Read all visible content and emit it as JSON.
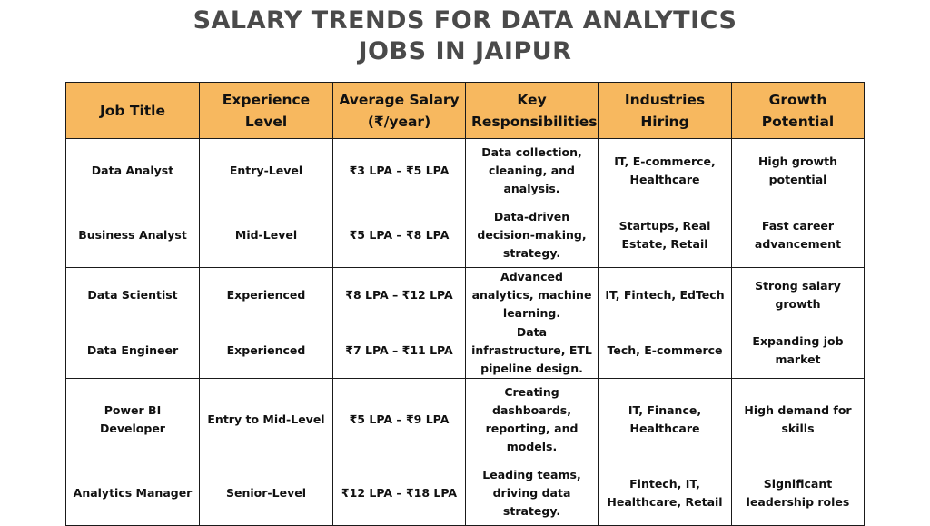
{
  "title": {
    "line1": "SALARY TRENDS FOR DATA ANALYTICS",
    "line2": "JOBS IN JAIPUR"
  },
  "table": {
    "headers": [
      "Job Title",
      "Experience Level",
      "Average Salary (₹/year)",
      "Key Responsibilities",
      "Industries Hiring",
      "Growth Potential"
    ],
    "rows": [
      [
        "Data Analyst",
        "Entry-Level",
        "₹3 LPA – ₹5 LPA",
        "Data collection, cleaning, and analysis.",
        "IT, E-commerce, Healthcare",
        "High growth potential"
      ],
      [
        "Business Analyst",
        "Mid-Level",
        "₹5 LPA – ₹8 LPA",
        "Data-driven decision-making, strategy.",
        "Startups, Real Estate, Retail",
        "Fast career advancement"
      ],
      [
        "Data Scientist",
        "Experienced",
        "₹8 LPA – ₹12 LPA",
        "Advanced analytics, machine learning.",
        "IT, Fintech, EdTech",
        "Strong salary growth"
      ],
      [
        "Data Engineer",
        "Experienced",
        "₹7 LPA – ₹11 LPA",
        "Data infrastructure, ETL pipeline design.",
        "Tech, E-commerce",
        "Expanding job market"
      ],
      [
        "Power BI Developer",
        "Entry to Mid-Level",
        "₹5 LPA – ₹9 LPA",
        "Creating dashboards, reporting, and models.",
        "IT, Finance, Healthcare",
        "High demand for skills"
      ],
      [
        "Analytics Manager",
        "Senior-Level",
        "₹12 LPA – ₹18 LPA",
        "Leading teams, driving data strategy.",
        "Fintech, IT, Healthcare, Retail",
        "Significant leadership roles"
      ]
    ]
  },
  "colors": {
    "header_background": "#f7b85f",
    "title_text": "#4a4a4a",
    "border": "#1a1a1a"
  }
}
